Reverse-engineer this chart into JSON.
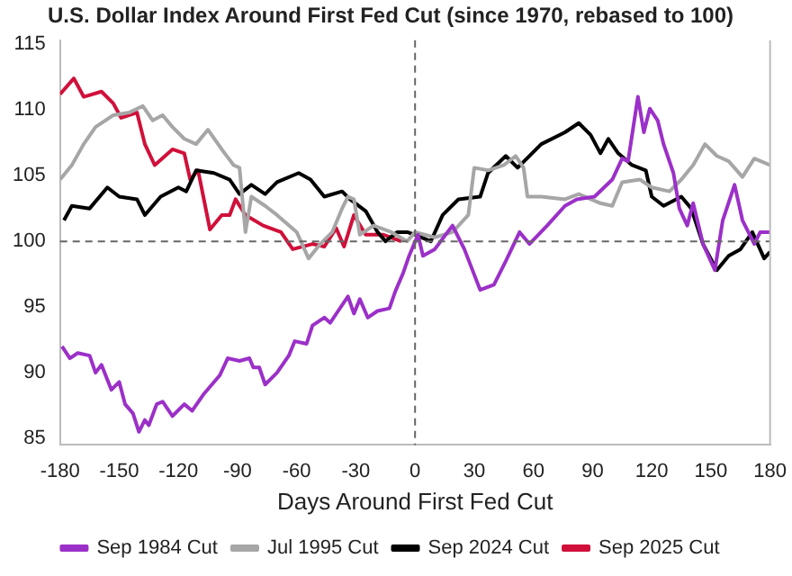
{
  "chart_data": {
    "type": "line",
    "title": "U.S. Dollar Index Around First Fed Cut (since 1970, rebased to 100)",
    "xlabel": "Days Around First Fed Cut",
    "xlim": [
      -180,
      180
    ],
    "xticks": [
      -180,
      -150,
      -120,
      -90,
      -60,
      -30,
      0,
      30,
      60,
      90,
      120,
      150,
      180
    ],
    "ylim": [
      84.5,
      115.3
    ],
    "yticks": [
      85,
      90,
      95,
      100,
      105,
      110,
      115
    ],
    "grid": false,
    "legend": "bottom",
    "marker": "none",
    "line_style": "solid",
    "ref_lines": [
      {
        "axis": "x",
        "value": 0,
        "color": "#666666",
        "line_style": "dashed"
      },
      {
        "axis": "y",
        "value": 100,
        "color": "#666666",
        "line_style": "dashed"
      }
    ],
    "series": [
      {
        "name": "Sep 1984 Cut",
        "color": "#9b30c8",
        "x": [
          -179,
          -175,
          -171,
          -165,
          -162,
          -159,
          -154,
          -150,
          -147,
          -143,
          -140,
          -137,
          -135,
          -131,
          -128,
          -123,
          -117,
          -113,
          -107,
          -99,
          -95,
          -89,
          -84,
          -82,
          -79,
          -76,
          -70,
          -64,
          -61,
          -55,
          -52,
          -46,
          -43,
          -39,
          -34,
          -31,
          -28,
          -24,
          -19,
          -13,
          -10,
          -6,
          -3,
          1.5,
          4,
          10,
          19,
          25,
          33,
          40,
          46,
          53,
          58,
          67,
          76,
          82,
          91,
          100,
          105,
          108,
          113,
          116,
          119,
          123,
          126,
          131,
          134,
          138,
          141,
          146,
          152,
          156,
          162,
          166,
          172,
          175,
          180
        ],
        "values": [
          92.0,
          91.1,
          91.5,
          91.3,
          90.0,
          90.6,
          88.7,
          89.3,
          87.6,
          86.9,
          85.5,
          86.4,
          86.0,
          87.6,
          87.8,
          86.7,
          87.6,
          87.1,
          88.4,
          89.8,
          91.1,
          90.9,
          91.1,
          90.4,
          90.4,
          89.1,
          90.0,
          91.3,
          92.4,
          92.2,
          93.6,
          94.2,
          93.8,
          94.7,
          95.8,
          94.5,
          95.6,
          94.2,
          94.7,
          94.9,
          96.2,
          97.6,
          98.9,
          100.5,
          98.9,
          99.4,
          101.2,
          99.4,
          96.3,
          96.7,
          98.5,
          100.7,
          99.8,
          101.2,
          102.7,
          103.2,
          103.4,
          104.7,
          106.3,
          106.1,
          111.0,
          108.3,
          110.1,
          109.2,
          107.4,
          105.2,
          102.5,
          101.2,
          102.9,
          99.8,
          97.8,
          101.6,
          104.3,
          101.6,
          99.8,
          100.7,
          100.7
        ]
      },
      {
        "name": "Jul 1995 Cut",
        "color": "#a6a6a6",
        "x": [
          -180,
          -174,
          -168,
          -162,
          -153,
          -145,
          -138,
          -133,
          -128,
          -123,
          -117,
          -111,
          -105,
          -98,
          -92,
          -89,
          -86,
          -83,
          -76,
          -70,
          -60,
          -54,
          -48,
          -42,
          -37,
          -34,
          -31,
          -28,
          -21,
          -12,
          -4,
          0,
          10,
          19,
          27,
          30,
          37,
          45,
          51,
          55,
          57,
          64,
          76,
          83,
          94,
          100,
          105,
          114,
          120,
          129,
          135,
          141,
          147,
          153,
          159,
          166,
          172,
          180
        ],
        "values": [
          104.7,
          105.8,
          107.4,
          108.7,
          109.6,
          109.8,
          110.3,
          109.2,
          109.6,
          108.7,
          107.8,
          107.4,
          108.5,
          107.0,
          105.8,
          105.6,
          100.7,
          103.4,
          102.7,
          102.0,
          100.7,
          98.7,
          99.8,
          100.7,
          102.5,
          103.4,
          103.2,
          100.5,
          101.2,
          100.7,
          100.0,
          100.7,
          100.3,
          100.7,
          102.0,
          105.6,
          105.4,
          105.8,
          106.5,
          105.6,
          103.4,
          103.4,
          103.2,
          103.6,
          102.9,
          102.7,
          104.5,
          104.7,
          104.1,
          103.8,
          104.7,
          105.8,
          107.4,
          106.5,
          106.1,
          104.9,
          106.3,
          105.8
        ]
      },
      {
        "name": "Sep 2024 Cut",
        "color": "#000000",
        "x": [
          -178,
          -174,
          -165,
          -156,
          -150,
          -141,
          -137,
          -129,
          -120,
          -116,
          -111,
          -102,
          -94,
          -89,
          -83,
          -76,
          -70,
          -59,
          -53,
          -46,
          -37,
          -33,
          -25,
          -19,
          -15,
          -9,
          -4,
          0,
          8,
          14,
          22,
          33,
          37,
          46,
          52,
          64,
          76,
          83,
          89,
          94,
          98,
          103,
          110,
          117,
          120,
          126,
          135,
          140,
          146,
          153,
          159,
          165,
          171,
          177,
          180
        ],
        "values": [
          101.6,
          102.7,
          102.5,
          104.1,
          103.4,
          103.2,
          102.0,
          103.4,
          104.1,
          103.8,
          105.4,
          105.2,
          104.7,
          103.6,
          104.3,
          103.6,
          104.5,
          105.2,
          104.7,
          103.4,
          103.8,
          103.2,
          102.3,
          100.7,
          100.0,
          100.7,
          100.7,
          100.5,
          100.0,
          102.0,
          103.2,
          103.4,
          105.2,
          106.5,
          105.6,
          107.4,
          108.3,
          109.0,
          108.1,
          106.7,
          107.8,
          106.7,
          105.8,
          105.4,
          103.4,
          102.7,
          103.4,
          102.5,
          99.8,
          97.8,
          98.9,
          99.4,
          100.7,
          98.7,
          99.2
        ]
      },
      {
        "name": "Sep 2025 Cut",
        "color": "#d0103a",
        "x": [
          -180,
          -173,
          -168,
          -159,
          -153,
          -149,
          -141,
          -137,
          -132,
          -123,
          -117,
          -114,
          -110,
          -104,
          -98,
          -94,
          -91,
          -86,
          -77,
          -68,
          -62,
          -52,
          -46,
          -40,
          -36,
          -31,
          -25,
          -16,
          -7
        ],
        "values": [
          111.2,
          112.4,
          111.0,
          111.4,
          110.5,
          109.4,
          109.8,
          107.4,
          105.8,
          107.0,
          106.7,
          104.7,
          105.4,
          100.9,
          102.0,
          102.0,
          103.2,
          102.0,
          101.2,
          100.7,
          99.4,
          99.8,
          99.6,
          101.0,
          99.6,
          102.0,
          100.5,
          100.5,
          100.0
        ]
      }
    ]
  }
}
